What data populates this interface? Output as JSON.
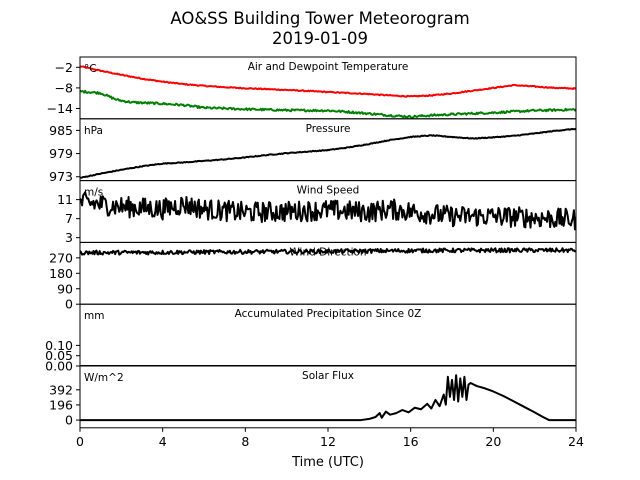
{
  "figure": {
    "title_line1": "AO&SS Building Tower Meteorogram",
    "title_line2": "2019-01-09",
    "xlabel": "Time (UTC)"
  },
  "chart_data": {
    "type": "line",
    "x": {
      "label": "Time (UTC)",
      "range": [
        0,
        24
      ],
      "ticks": [
        0,
        4,
        8,
        12,
        16,
        20,
        24
      ]
    },
    "panels": [
      {
        "key": "temp",
        "title": "Air and Dewpoint Temperature",
        "unit": "°C",
        "ylim": [
          -17,
          1
        ],
        "yticks": [
          -2,
          -8,
          -14
        ],
        "ytick_labels": [
          "−2",
          "−8",
          "−14"
        ],
        "series": [
          {
            "color": "#ff0000",
            "noise": 0.15,
            "points": [
              [
                0,
                -1.7
              ],
              [
                1,
                -3.0
              ],
              [
                2,
                -4.2
              ],
              [
                3,
                -5.3
              ],
              [
                4,
                -6.2
              ],
              [
                5,
                -6.9
              ],
              [
                6,
                -7.4
              ],
              [
                7,
                -7.8
              ],
              [
                8,
                -8.1
              ],
              [
                10,
                -8.6
              ],
              [
                12,
                -9.2
              ],
              [
                14,
                -9.8
              ],
              [
                15,
                -10.2
              ],
              [
                16,
                -10.5
              ],
              [
                17,
                -10.2
              ],
              [
                18,
                -9.6
              ],
              [
                19,
                -8.8
              ],
              [
                20,
                -8.0
              ],
              [
                21,
                -7.2
              ],
              [
                22,
                -7.6
              ],
              [
                23,
                -8.0
              ],
              [
                24,
                -8.2
              ]
            ]
          },
          {
            "color": "#008000",
            "noise": 0.3,
            "points": [
              [
                0,
                -9.0
              ],
              [
                1,
                -9.5
              ],
              [
                1.8,
                -11.5
              ],
              [
                2.5,
                -12.2
              ],
              [
                4,
                -12.6
              ],
              [
                5,
                -13.0
              ],
              [
                6,
                -13.8
              ],
              [
                8,
                -14.2
              ],
              [
                10,
                -14.5
              ],
              [
                12,
                -14.6
              ],
              [
                13,
                -15.0
              ],
              [
                14,
                -15.5
              ],
              [
                15,
                -16.0
              ],
              [
                16,
                -16.4
              ],
              [
                17,
                -16.0
              ],
              [
                18,
                -15.7
              ],
              [
                20,
                -15.2
              ],
              [
                22,
                -14.6
              ],
              [
                24,
                -14.3
              ]
            ]
          }
        ]
      },
      {
        "key": "pressure",
        "title": "Pressure",
        "unit": "hPa",
        "ylim": [
          972,
          988
        ],
        "yticks": [
          985,
          979,
          973
        ],
        "ytick_labels": [
          "985",
          "979",
          "973"
        ],
        "series": [
          {
            "color": "#000000",
            "noise": 0.1,
            "points": [
              [
                0,
                972.7
              ],
              [
                1,
                973.8
              ],
              [
                2,
                974.8
              ],
              [
                3,
                975.7
              ],
              [
                4,
                976.4
              ],
              [
                5,
                976.7
              ],
              [
                6,
                977.1
              ],
              [
                7,
                977.5
              ],
              [
                8,
                978.0
              ],
              [
                9,
                978.6
              ],
              [
                10,
                979.1
              ],
              [
                11,
                979.5
              ],
              [
                12,
                979.9
              ],
              [
                13,
                980.6
              ],
              [
                14,
                981.5
              ],
              [
                15,
                982.5
              ],
              [
                16,
                983.3
              ],
              [
                17,
                983.7
              ],
              [
                18,
                983.3
              ],
              [
                19,
                982.9
              ],
              [
                20,
                983.2
              ],
              [
                21,
                983.6
              ],
              [
                22,
                984.2
              ],
              [
                23,
                984.9
              ],
              [
                24,
                985.4
              ]
            ]
          }
        ]
      },
      {
        "key": "speed",
        "title": "Wind Speed",
        "unit": "m/s",
        "ylim": [
          2,
          15
        ],
        "yticks": [
          11,
          7,
          3
        ],
        "ytick_labels": [
          "11",
          "7",
          "3"
        ],
        "series": [
          {
            "color": "#000000",
            "noise": 2.2,
            "points": [
              [
                0,
                10.5
              ],
              [
                2,
                9.5
              ],
              [
                4,
                9.0
              ],
              [
                5,
                10.0
              ],
              [
                6,
                9.0
              ],
              [
                8,
                8.3
              ],
              [
                10,
                8.5
              ],
              [
                12,
                8.8
              ],
              [
                14,
                8.4
              ],
              [
                15,
                9.0
              ],
              [
                16,
                8.5
              ],
              [
                18,
                7.5
              ],
              [
                20,
                7.5
              ],
              [
                22,
                7.2
              ],
              [
                24,
                6.8
              ]
            ]
          }
        ]
      },
      {
        "key": "direction",
        "title": "Wind Direction",
        "unit": "",
        "ylim": [
          0,
          360
        ],
        "yticks": [
          270,
          180,
          90,
          0
        ],
        "ytick_labels": [
          "270",
          "180",
          "90",
          "0"
        ],
        "series": [
          {
            "color": "#000000",
            "noise": 12,
            "points": [
              [
                0,
                300
              ],
              [
                4,
                302
              ],
              [
                8,
                305
              ],
              [
                12,
                308
              ],
              [
                16,
                312
              ],
              [
                20,
                314
              ],
              [
                24,
                314
              ]
            ]
          }
        ]
      },
      {
        "key": "precip",
        "title": "Accumulated Precipitation Since 0Z",
        "unit": "mm",
        "ylim": [
          0,
          0.3
        ],
        "yticks": [
          0.1,
          0.05,
          0.0
        ],
        "ytick_labels": [
          "0.10",
          "0.05",
          "0.00"
        ],
        "series": [
          {
            "color": "#000000",
            "noise": 0,
            "points": [
              [
                0,
                0
              ],
              [
                24,
                0
              ]
            ]
          }
        ]
      },
      {
        "key": "solar",
        "title": "Solar Flux",
        "unit": "W/m^2",
        "ylim": [
          -100,
          700
        ],
        "yticks": [
          392,
          196,
          0
        ],
        "ytick_labels": [
          "392",
          "196",
          "0"
        ],
        "series": [
          {
            "color": "#000000",
            "noise": 0,
            "points": [
              [
                0,
                0
              ],
              [
                13.6,
                0
              ],
              [
                14.0,
                15
              ],
              [
                14.3,
                40
              ],
              [
                14.5,
                90
              ],
              [
                14.6,
                30
              ],
              [
                14.8,
                110
              ],
              [
                15.0,
                70
              ],
              [
                15.3,
                90
              ],
              [
                15.6,
                130
              ],
              [
                15.9,
                100
              ],
              [
                16.2,
                160
              ],
              [
                16.5,
                140
              ],
              [
                16.8,
                210
              ],
              [
                17.0,
                150
              ],
              [
                17.2,
                260
              ],
              [
                17.4,
                180
              ],
              [
                17.6,
                330
              ],
              [
                17.7,
                200
              ],
              [
                17.8,
                560
              ],
              [
                17.9,
                300
              ],
              [
                18.0,
                520
              ],
              [
                18.1,
                260
              ],
              [
                18.2,
                580
              ],
              [
                18.3,
                240
              ],
              [
                18.4,
                540
              ],
              [
                18.5,
                300
              ],
              [
                18.6,
                560
              ],
              [
                18.7,
                260
              ],
              [
                18.8,
                460
              ],
              [
                18.9,
                480
              ],
              [
                19.2,
                440
              ],
              [
                19.6,
                410
              ],
              [
                20.0,
                370
              ],
              [
                20.5,
                310
              ],
              [
                21.0,
                240
              ],
              [
                21.5,
                170
              ],
              [
                22.0,
                100
              ],
              [
                22.4,
                40
              ],
              [
                22.7,
                0
              ],
              [
                24,
                0
              ]
            ]
          }
        ]
      }
    ]
  }
}
